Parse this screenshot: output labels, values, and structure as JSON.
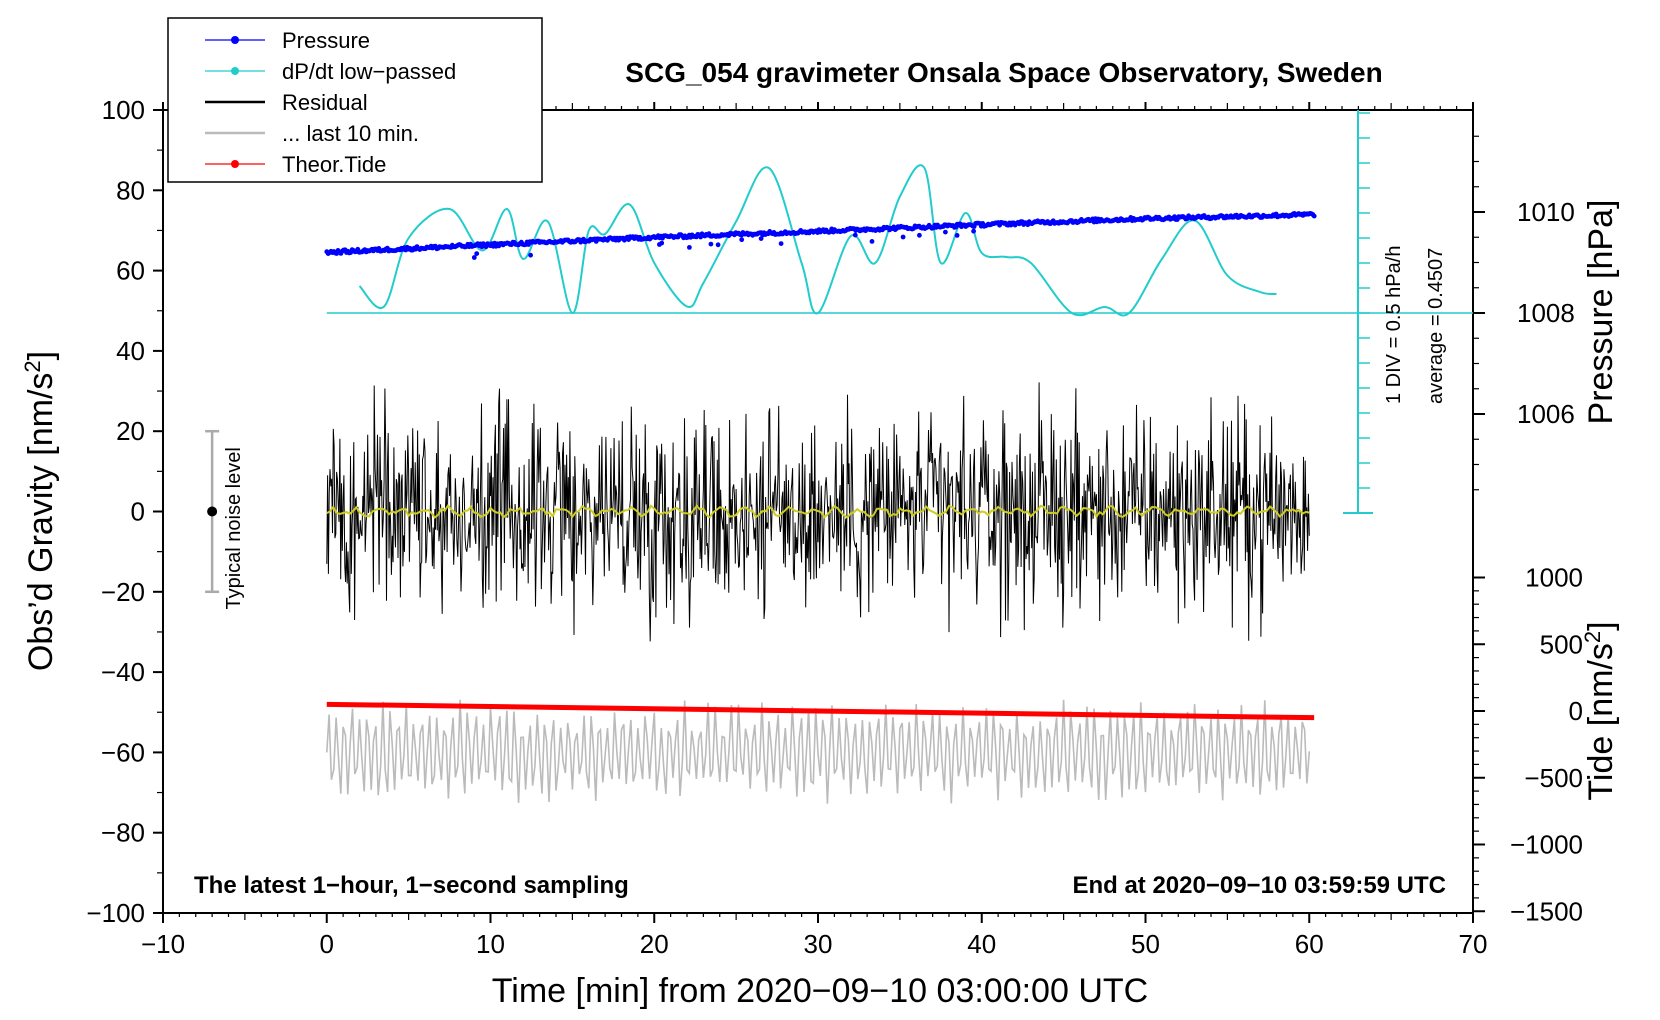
{
  "chart_data": {
    "type": "line",
    "title": "SCG_054 gravimeter Onsala Space Observatory, Sweden",
    "xlabel": "Time [min] from 2020−09−10 03:00:00 UTC",
    "ylabel_left": "Obs’d Gravity [nm/s²]",
    "ylabel_left_main": "Obs’d Gravity [nm/s",
    "ylabel_right_top": "Pressure [hPa]",
    "ylabel_right_bottom_main": "Tide [nm/s",
    "superscript": "2",
    "xlim": [
      -10,
      70
    ],
    "ylim_left": [
      -100,
      100
    ],
    "x_ticks": [
      -10,
      0,
      10,
      20,
      30,
      40,
      50,
      60,
      70
    ],
    "x_tick_labels": [
      "−10",
      "0",
      "10",
      "20",
      "30",
      "40",
      "50",
      "60",
      "70"
    ],
    "y_ticks_left": [
      -100,
      -80,
      -60,
      -40,
      -20,
      0,
      20,
      40,
      60,
      80,
      100
    ],
    "y_tick_labels_left": [
      "−100",
      "−80",
      "−60",
      "−40",
      "−20",
      "0",
      "20",
      "40",
      "60",
      "80",
      "100"
    ],
    "pressure_axis": {
      "ticks": [
        1006,
        1008,
        1010
      ],
      "tick_labels": [
        "1006",
        "1008",
        "1010"
      ],
      "range_hpa": [
        1004,
        1012
      ]
    },
    "tide_axis": {
      "ticks": [
        -1500,
        -1000,
        -500,
        0,
        500,
        1000
      ],
      "tick_labels": [
        "−1500",
        "−1000",
        "−500",
        "0",
        "500",
        "1000"
      ]
    },
    "dpdt_scale": {
      "text": "1 DIV = 0.5 hPa/h",
      "average_text": "average = 0.4507"
    },
    "noise_bar": {
      "label": "Typical noise level",
      "x": -7,
      "center": 0,
      "half_range": 20
    },
    "annotations": {
      "left": "The latest 1−hour, 1−second sampling",
      "right": "End at 2020−09−10 03:59:59 UTC"
    },
    "legend": [
      {
        "label": "Pressure",
        "color": "#0000ff",
        "marker": "dot"
      },
      {
        "label": "dP/dt low−passed",
        "color": "#22cccc",
        "marker": "dot"
      },
      {
        "label": "Residual",
        "color": "#000000",
        "marker": "line"
      },
      {
        "label": "... last 10 min.",
        "color": "#bbbbbb",
        "marker": "line"
      },
      {
        "label": "Theor.Tide",
        "color": "#ff0000",
        "marker": "dot"
      }
    ],
    "series": [
      {
        "name": "Pressure",
        "unit": "hPa",
        "x": [
          0,
          10,
          20,
          30,
          40,
          50,
          60.3
        ],
        "values": [
          1009.2,
          1009.35,
          1009.5,
          1009.62,
          1009.75,
          1009.87,
          1009.95
        ]
      },
      {
        "name": "dP/dt low−passed",
        "unit": "hPa/h",
        "x": [
          2,
          3.5,
          5,
          7.5,
          9.5,
          11,
          12,
          13.5,
          15,
          16,
          17,
          18.5,
          20,
          22,
          23,
          25,
          27,
          29,
          30,
          32,
          33.5,
          35,
          36.5,
          37.5,
          39,
          40,
          41.5,
          43,
          45.5,
          47.5,
          49,
          51,
          53,
          55,
          57,
          58
        ],
        "values": [
          0.54,
          0.13,
          1.5,
          2.08,
          1.25,
          2.08,
          1.08,
          1.83,
          0.0,
          1.65,
          1.58,
          2.17,
          1.0,
          0.13,
          0.6,
          1.83,
          2.9,
          1.0,
          0.0,
          1.54,
          1.0,
          2.33,
          2.9,
          1.0,
          2.0,
          1.2,
          1.12,
          1.0,
          0.0,
          0.12,
          0.0,
          1.08,
          1.85,
          0.75,
          0.42,
          0.38
        ]
      },
      {
        "name": "Residual",
        "unit": "nm/s²",
        "x_range": [
          0,
          60
        ],
        "mean": 0,
        "typical_amplitude": 12
      },
      {
        "name": "... last 10 min.",
        "unit": "nm/s²",
        "x_range": [
          0,
          60
        ],
        "offset": -60,
        "typical_amplitude": 12
      },
      {
        "name": "Theor.Tide",
        "unit": "nm/s²",
        "x": [
          0,
          60.3
        ],
        "values": [
          50,
          -50
        ]
      }
    ]
  }
}
